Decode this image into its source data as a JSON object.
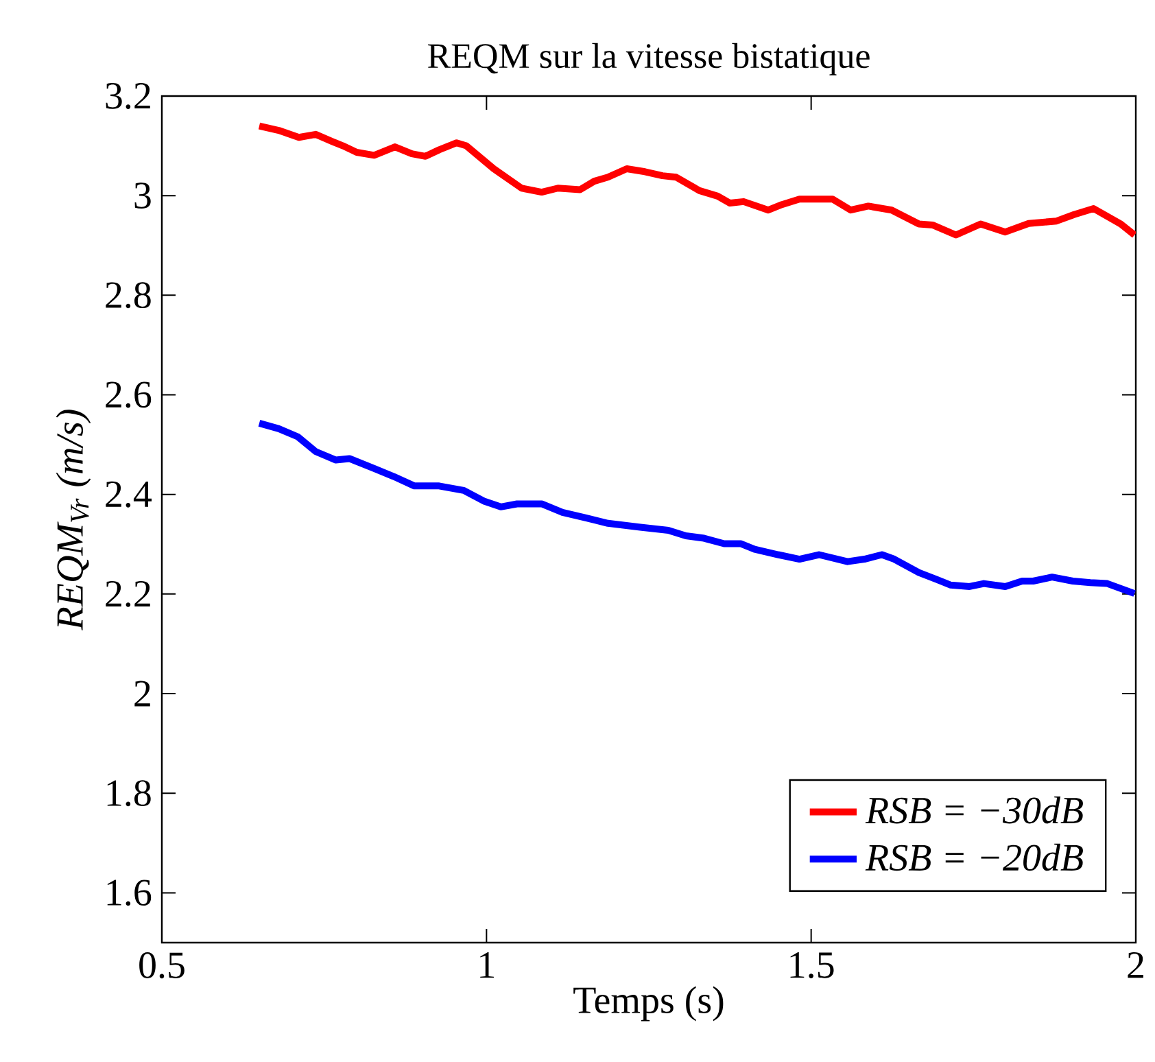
{
  "chart_data": {
    "type": "line",
    "title": "REQM sur la vitesse bistatique",
    "xlabel": "Temps (s)",
    "ylabel": "REQM$_{Vr}$ (m/s)",
    "xlim": [
      0.5,
      2
    ],
    "ylim": [
      1.5,
      3.2
    ],
    "xticks": [
      0.5,
      1,
      1.5,
      2
    ],
    "yticks": [
      1.6,
      1.8,
      2,
      2.2,
      2.4,
      2.6,
      2.8,
      3,
      3.2
    ],
    "legend": "bottom right",
    "series": [
      {
        "name": "RSB = −30dB",
        "color": "#ff0000",
        "x": [
          0.65,
          0.68,
          0.711,
          0.737,
          0.762,
          0.779,
          0.8,
          0.827,
          0.859,
          0.885,
          0.906,
          0.927,
          0.954,
          0.969,
          1.011,
          1.054,
          1.085,
          1.11,
          1.144,
          1.166,
          1.187,
          1.216,
          1.244,
          1.271,
          1.292,
          1.328,
          1.356,
          1.375,
          1.396,
          1.434,
          1.455,
          1.482,
          1.533,
          1.561,
          1.588,
          1.624,
          1.666,
          1.687,
          1.723,
          1.761,
          1.799,
          1.835,
          1.878,
          1.905,
          1.935,
          1.977,
          1.998
        ],
        "values": [
          3.14,
          3.131,
          3.117,
          3.123,
          3.109,
          3.1,
          3.087,
          3.081,
          3.098,
          3.084,
          3.079,
          3.092,
          3.106,
          3.1,
          3.054,
          3.015,
          3.007,
          3.015,
          3.012,
          3.029,
          3.037,
          3.054,
          3.048,
          3.04,
          3.037,
          3.01,
          2.999,
          2.985,
          2.988,
          2.971,
          2.982,
          2.993,
          2.993,
          2.971,
          2.979,
          2.971,
          2.943,
          2.941,
          2.921,
          2.943,
          2.927,
          2.944,
          2.949,
          2.962,
          2.974,
          2.943,
          2.921
        ]
      },
      {
        "name": "RSB = −20dB",
        "color": "#0000ff",
        "x": [
          0.65,
          0.68,
          0.709,
          0.737,
          0.768,
          0.789,
          0.827,
          0.857,
          0.889,
          0.927,
          0.965,
          0.997,
          1.022,
          1.047,
          1.085,
          1.117,
          1.153,
          1.187,
          1.237,
          1.28,
          1.307,
          1.335,
          1.366,
          1.392,
          1.413,
          1.449,
          1.482,
          1.512,
          1.556,
          1.582,
          1.609,
          1.628,
          1.666,
          1.694,
          1.715,
          1.744,
          1.766,
          1.799,
          1.825,
          1.842,
          1.871,
          1.903,
          1.93,
          1.956,
          1.998
        ],
        "values": [
          2.543,
          2.532,
          2.516,
          2.486,
          2.469,
          2.472,
          2.452,
          2.436,
          2.417,
          2.417,
          2.408,
          2.386,
          2.375,
          2.381,
          2.381,
          2.364,
          2.353,
          2.342,
          2.334,
          2.328,
          2.317,
          2.312,
          2.301,
          2.301,
          2.29,
          2.279,
          2.27,
          2.279,
          2.265,
          2.27,
          2.279,
          2.27,
          2.243,
          2.229,
          2.218,
          2.215,
          2.221,
          2.215,
          2.226,
          2.226,
          2.234,
          2.226,
          2.223,
          2.221,
          2.201
        ]
      }
    ]
  }
}
